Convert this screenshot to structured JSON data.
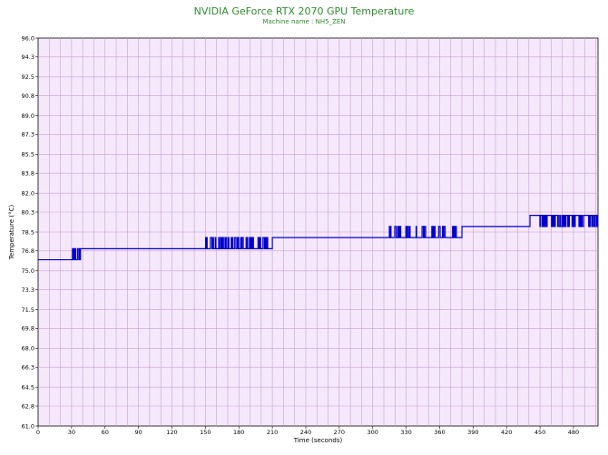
{
  "chart_data": {
    "type": "line",
    "title": "NVIDIA GeForce RTX 2070 GPU Temperature",
    "subtitle": "Machine name : NH5_ZEN",
    "xlabel": "Time (seconds)",
    "ylabel": "Temperature (°C)",
    "xlim": [
      0,
      502
    ],
    "ylim": [
      61.0,
      96.0
    ],
    "x_ticks": [
      "0",
      "30",
      "60",
      "90",
      "120",
      "150",
      "180",
      "210",
      "240",
      "270",
      "300",
      "330",
      "360",
      "390",
      "420",
      "450",
      "480"
    ],
    "y_ticks": [
      "61.0",
      "62.8",
      "64.5",
      "66.3",
      "68.0",
      "69.8",
      "71.5",
      "73.3",
      "75.0",
      "76.8",
      "78.5",
      "80.3",
      "82.0",
      "83.8",
      "85.5",
      "87.3",
      "89.0",
      "90.8",
      "92.5",
      "94.3",
      "96.0"
    ],
    "grid": true,
    "colors": {
      "plot_bg": "#f6e8fb",
      "grid": "#c6a0d2",
      "line": "#0000cc",
      "title": "#2e8b2e"
    },
    "series": [
      {
        "segments": [
          {
            "x_start": 0,
            "x_end": 30,
            "base": 76.0,
            "spike_to": 76.0,
            "spike_count": 0
          },
          {
            "x_start": 30,
            "x_end": 38,
            "base": 76.0,
            "spike_to": 77.0,
            "spike_count": 5
          },
          {
            "x_start": 38,
            "x_end": 146,
            "base": 77.0,
            "spike_to": 77.0,
            "spike_count": 0
          },
          {
            "x_start": 146,
            "x_end": 210,
            "base": 77.0,
            "spike_to": 78.0,
            "spike_count": 40
          },
          {
            "x_start": 210,
            "x_end": 314,
            "base": 78.0,
            "spike_to": 78.0,
            "spike_count": 0
          },
          {
            "x_start": 314,
            "x_end": 380,
            "base": 78.0,
            "spike_to": 79.0,
            "spike_count": 30
          },
          {
            "x_start": 380,
            "x_end": 441,
            "base": 79.0,
            "spike_to": 79.0,
            "spike_count": 2
          },
          {
            "x_start": 441,
            "x_end": 502,
            "base": 80.0,
            "spike_to": 79.0,
            "spike_count": 35
          }
        ]
      }
    ]
  }
}
